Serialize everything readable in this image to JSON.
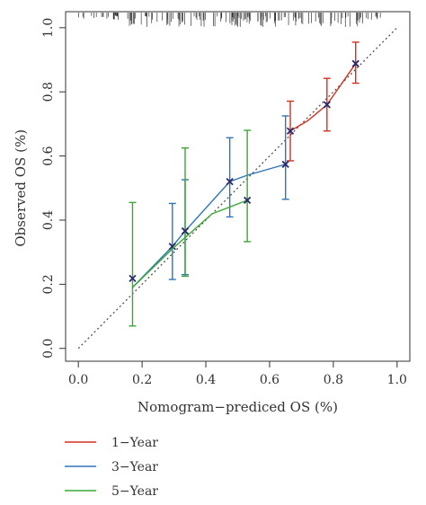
{
  "chart_data": {
    "type": "line",
    "xlabel": "Nomogram−prediced OS (%)",
    "ylabel": "Observed OS (%)",
    "xlim": [
      -0.04,
      1.04
    ],
    "ylim": [
      -0.04,
      1.05
    ],
    "x_ticks": [
      "0.0",
      "0.2",
      "0.4",
      "0.6",
      "0.8",
      "1.0"
    ],
    "y_ticks": [
      "0.0",
      "0.2",
      "0.4",
      "0.6",
      "0.8",
      "1.0"
    ],
    "reference_line": {
      "style": "dotted",
      "from": [
        0,
        0
      ],
      "to": [
        1,
        1
      ]
    },
    "rug": {
      "position": "top",
      "x_range": [
        0.0,
        0.97
      ]
    },
    "legend_position": "bottom-left",
    "series": [
      {
        "name": "1−Year",
        "color": "#d62f1f",
        "x": [
          0.665,
          0.78,
          0.87
        ],
        "y": [
          0.678,
          0.76,
          0.888
        ],
        "lower": [
          0.585,
          0.678,
          0.827
        ],
        "upper": [
          0.771,
          0.842,
          0.955
        ],
        "curve": [
          [
            0.665,
            0.678
          ],
          [
            0.72,
            0.71
          ],
          [
            0.78,
            0.76
          ],
          [
            0.87,
            0.888
          ]
        ]
      },
      {
        "name": "3−Year",
        "color": "#2e75b6",
        "x": [
          0.295,
          0.335,
          0.475,
          0.65
        ],
        "y": [
          0.318,
          0.366,
          0.52,
          0.574
        ],
        "lower": [
          0.215,
          0.23,
          0.41,
          0.465
        ],
        "upper": [
          0.452,
          0.526,
          0.657,
          0.725
        ],
        "curve": [
          [
            0.17,
            0.19
          ],
          [
            0.295,
            0.318
          ],
          [
            0.335,
            0.366
          ],
          [
            0.475,
            0.52
          ],
          [
            0.53,
            0.54
          ],
          [
            0.65,
            0.574
          ]
        ]
      },
      {
        "name": "5−Year",
        "color": "#3aa835",
        "x": [
          0.17,
          0.335,
          0.53
        ],
        "y": [
          0.218,
          0.366,
          0.462
        ],
        "lower": [
          0.07,
          0.225,
          0.333
        ],
        "upper": [
          0.455,
          0.625,
          0.68
        ],
        "curve": [
          [
            0.17,
            0.19
          ],
          [
            0.3,
            0.315
          ],
          [
            0.42,
            0.42
          ],
          [
            0.53,
            0.462
          ]
        ]
      }
    ]
  }
}
